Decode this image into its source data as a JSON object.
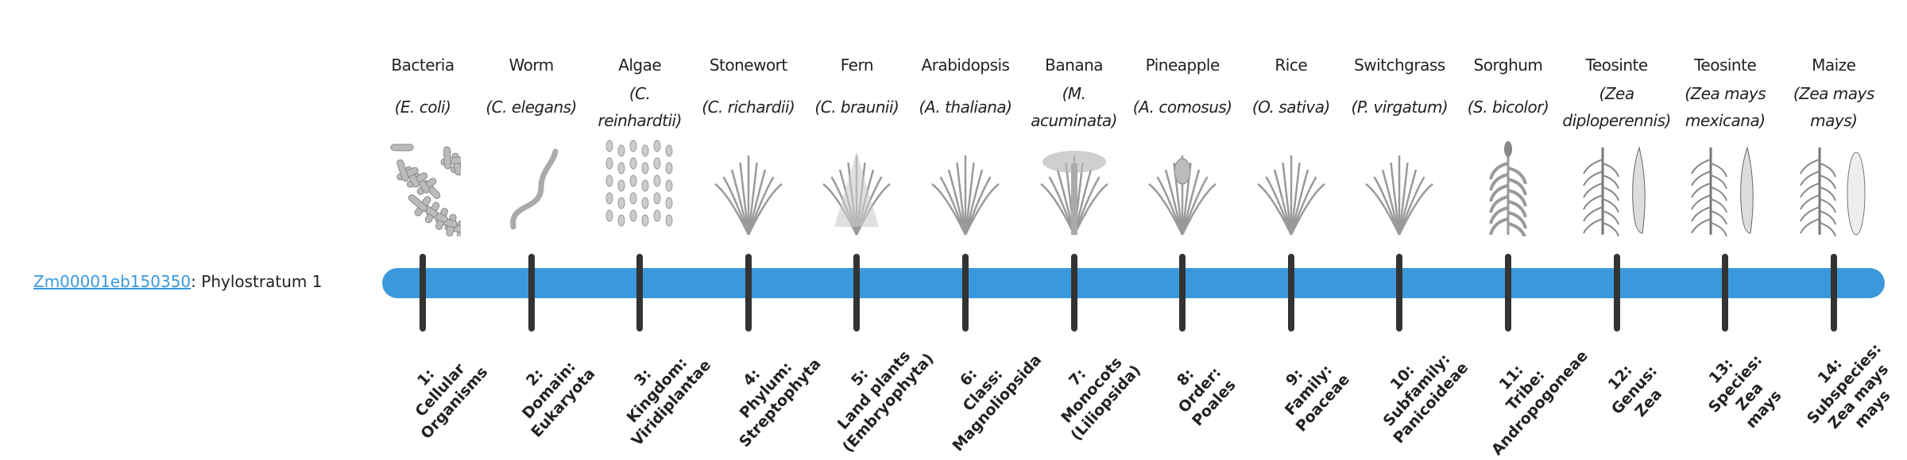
{
  "gene": {
    "id": "Zm00001eb150350",
    "suffix": ": Phylostratum 1"
  },
  "colors": {
    "bar": "#3a99dc",
    "tick": "#333333",
    "link": "#3a99dc"
  },
  "strata": [
    {
      "common": "Bacteria",
      "scientific": "(E. coli)",
      "icon": "bacteria-icon",
      "label_lines": [
        "1:",
        "Cellular",
        "Organisms"
      ]
    },
    {
      "common": "Worm",
      "scientific": "(C. elegans)",
      "icon": "worm-icon",
      "label_lines": [
        "2:",
        "Domain:",
        "Eukaryota"
      ]
    },
    {
      "common": "Algae",
      "scientific": "(C. reinhardtii)",
      "icon": "algae-icon",
      "label_lines": [
        "3:",
        "Kingdom:",
        "Viridiplantae"
      ]
    },
    {
      "common": "Stonewort",
      "scientific": "(C. richardii)",
      "icon": "stonewort-icon",
      "label_lines": [
        "4:",
        "Phylum:",
        "Streptophyta"
      ]
    },
    {
      "common": "Fern",
      "scientific": "(C. braunii)",
      "icon": "fern-icon",
      "label_lines": [
        "5:",
        "Land plants",
        "(Embryophyta)"
      ]
    },
    {
      "common": "Arabidopsis",
      "scientific": "(A. thaliana)",
      "icon": "arabidopsis-icon",
      "label_lines": [
        "6:",
        "Class:",
        "Magnoliopsida"
      ]
    },
    {
      "common": "Banana",
      "scientific": "(M. acuminata)",
      "icon": "banana-icon",
      "label_lines": [
        "7:",
        "Monocots",
        "(Liliopsida)"
      ]
    },
    {
      "common": "Pineapple",
      "scientific": "(A. comosus)",
      "icon": "pineapple-icon",
      "label_lines": [
        "8:",
        "Order:",
        "Poales"
      ]
    },
    {
      "common": "Rice",
      "scientific": "(O. sativa)",
      "icon": "rice-icon",
      "label_lines": [
        "9:",
        "Family:",
        "Poaceae"
      ]
    },
    {
      "common": "Switchgrass",
      "scientific": "(P. virgatum)",
      "icon": "switchgrass-icon",
      "label_lines": [
        "10:",
        "Subfamily:",
        "Panicoideae"
      ]
    },
    {
      "common": "Sorghum",
      "scientific": "(S. bicolor)",
      "icon": "sorghum-icon",
      "label_lines": [
        "11:",
        "Tribe:",
        "Andropogoneae"
      ]
    },
    {
      "common": "Teosinte",
      "scientific": "(Zea diploperennis)",
      "icon": "teosinte-icon",
      "label_lines": [
        "12:",
        "Genus:",
        "Zea"
      ]
    },
    {
      "common": "Teosinte",
      "scientific": "(Zea mays mexicana)",
      "icon": "teosinte-mexicana-icon",
      "label_lines": [
        "13:",
        "Species:",
        "Zea",
        "mays"
      ]
    },
    {
      "common": "Maize",
      "scientific": "(Zea mays mays)",
      "icon": "maize-icon",
      "label_lines": [
        "14:",
        "Subspecies:",
        "Zea mays",
        "mays"
      ]
    }
  ]
}
